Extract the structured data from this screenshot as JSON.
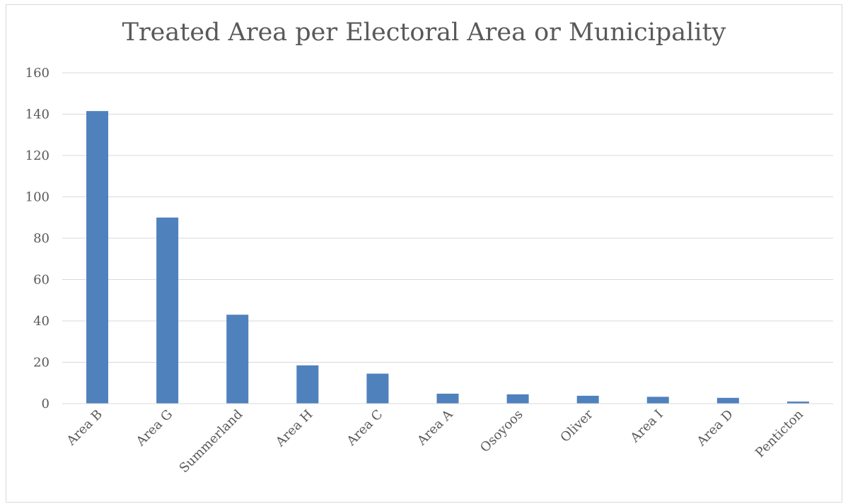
{
  "chart_data": {
    "type": "bar",
    "title": "Treated Area per Electoral Area or Municipality",
    "xlabel": "",
    "ylabel": "",
    "categories": [
      "Area B",
      "Area G",
      "Summerland",
      "Area H",
      "Area C",
      "Area A",
      "Osoyoos",
      "Oliver",
      "Area I",
      "Area D",
      "Penticton"
    ],
    "values": [
      141.5,
      90,
      43,
      18.5,
      14.5,
      4.8,
      4.5,
      3.8,
      3.3,
      2.8,
      1.0
    ],
    "ylim": [
      0,
      160
    ],
    "yticks": [
      "0",
      "20",
      "40",
      "60",
      "80",
      "100",
      "120",
      "140",
      "160"
    ],
    "grid": true,
    "legend": "none",
    "bar_color": "#4f81bd",
    "grid_color": "#d9d9d9"
  }
}
